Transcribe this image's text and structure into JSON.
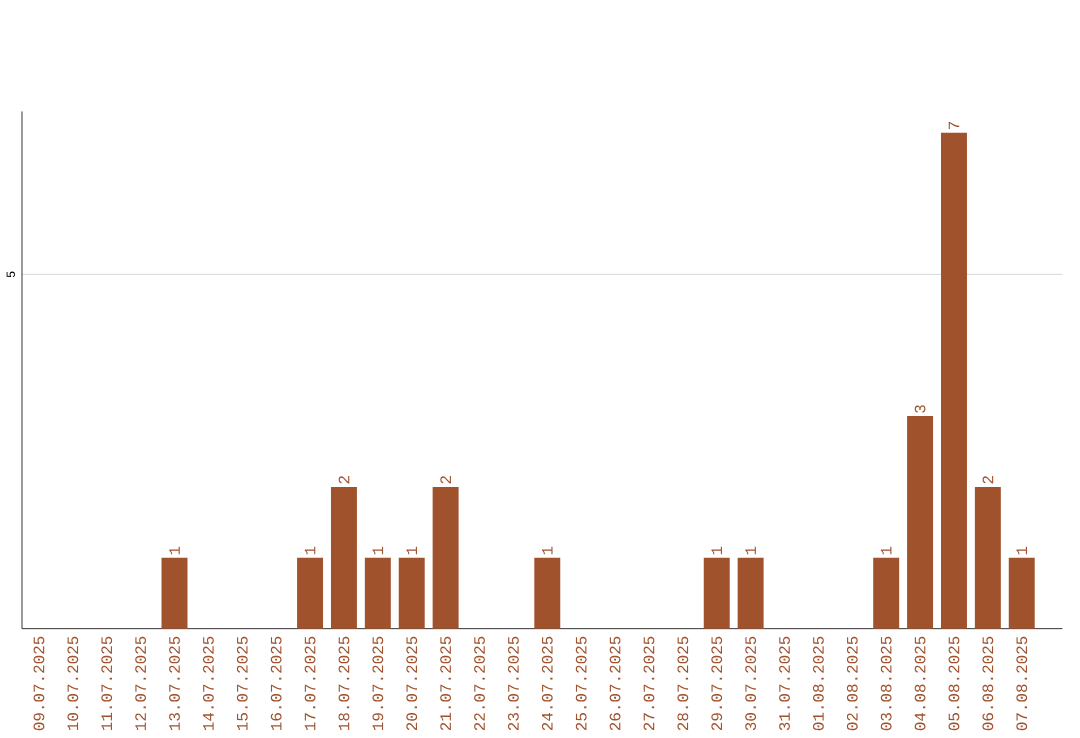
{
  "chart_data": {
    "type": "bar",
    "categories": [
      "09.07.2025",
      "10.07.2025",
      "11.07.2025",
      "12.07.2025",
      "13.07.2025",
      "14.07.2025",
      "15.07.2025",
      "16.07.2025",
      "17.07.2025",
      "18.07.2025",
      "19.07.2025",
      "20.07.2025",
      "21.07.2025",
      "22.07.2025",
      "23.07.2025",
      "24.07.2025",
      "25.07.2025",
      "26.07.2025",
      "27.07.2025",
      "28.07.2025",
      "29.07.2025",
      "30.07.2025",
      "31.07.2025",
      "01.08.2025",
      "02.08.2025",
      "03.08.2025",
      "04.08.2025",
      "05.08.2025",
      "06.08.2025",
      "07.08.2025"
    ],
    "values": [
      0,
      0,
      0,
      0,
      1,
      0,
      0,
      0,
      1,
      2,
      1,
      1,
      2,
      0,
      0,
      1,
      0,
      0,
      0,
      0,
      1,
      1,
      0,
      0,
      0,
      1,
      3,
      7,
      2,
      1
    ],
    "value_labels": [
      null,
      null,
      null,
      null,
      "1",
      null,
      null,
      null,
      "1",
      "2",
      "1",
      "1",
      "2",
      null,
      null,
      "1",
      null,
      null,
      null,
      null,
      "1",
      "1",
      null,
      null,
      null,
      "1",
      "3",
      "7",
      "2",
      "1"
    ],
    "color": "#a0522d",
    "ylim": [
      0,
      7.3
    ],
    "yticks": [
      5
    ],
    "grid": "y"
  }
}
